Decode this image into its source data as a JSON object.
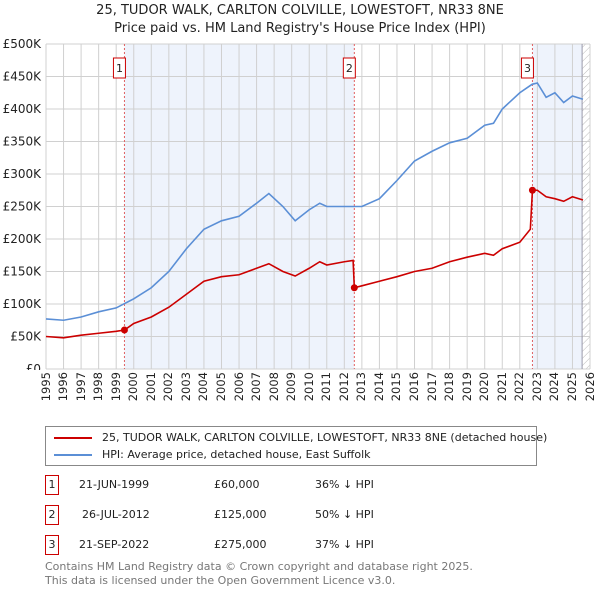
{
  "title": "25, TUDOR WALK, CARLTON COLVILLE, LOWESTOFT, NR33 8NE",
  "subtitle": "Price paid vs. HM Land Registry's House Price Index (HPI)",
  "chart_data": {
    "type": "line",
    "title": "25, TUDOR WALK, CARLTON COLVILLE, LOWESTOFT, NR33 8NE",
    "ylim": [
      0,
      500000
    ],
    "xlim": [
      1995,
      2026
    ],
    "yticks": [
      "£0",
      "£50K",
      "£100K",
      "£150K",
      "£200K",
      "£250K",
      "£300K",
      "£350K",
      "£400K",
      "£450K",
      "£500K"
    ],
    "xticks": [
      "1995",
      "1996",
      "1997",
      "1998",
      "1999",
      "2000",
      "2001",
      "2002",
      "2003",
      "2004",
      "2005",
      "2006",
      "2007",
      "2008",
      "2009",
      "2010",
      "2011",
      "2012",
      "2013",
      "2014",
      "2015",
      "2016",
      "2017",
      "2018",
      "2019",
      "2020",
      "2021",
      "2022",
      "2023",
      "2024",
      "2025",
      "2026"
    ],
    "series": [
      {
        "name": "25, TUDOR WALK, CARLTON COLVILLE, LOWESTOFT, NR33 8NE (detached house)",
        "color": "#cc0000",
        "x": [
          1995,
          1996,
          1997,
          1998,
          1999,
          1999.47,
          2000,
          2001,
          2002,
          2003,
          2004,
          2005,
          2006,
          2007,
          2007.7,
          2008.5,
          2009.2,
          2010,
          2010.6,
          2011,
          2012,
          2012.5,
          2012.57,
          2013,
          2014,
          2015,
          2016,
          2017,
          2018,
          2019,
          2020,
          2020.5,
          2021,
          2022,
          2022.6,
          2022.72,
          2023,
          2023.5,
          2024,
          2024.5,
          2025,
          2025.6
        ],
        "y": [
          50000,
          48000,
          52000,
          55000,
          58000,
          60000,
          70000,
          80000,
          95000,
          115000,
          135000,
          142000,
          145000,
          155000,
          162000,
          150000,
          143000,
          155000,
          165000,
          160000,
          165000,
          167000,
          125000,
          128000,
          135000,
          142000,
          150000,
          155000,
          165000,
          172000,
          178000,
          175000,
          185000,
          195000,
          215000,
          275000,
          275000,
          265000,
          262000,
          258000,
          265000,
          260000
        ]
      },
      {
        "name": "HPI: Average price, detached house, East Suffolk",
        "color": "#5b8fd6",
        "x": [
          1995,
          1996,
          1997,
          1998,
          1999,
          2000,
          2001,
          2002,
          2003,
          2004,
          2005,
          2006,
          2007,
          2007.7,
          2008.5,
          2009.2,
          2010,
          2010.6,
          2011,
          2012,
          2013,
          2014,
          2015,
          2016,
          2017,
          2018,
          2019,
          2020,
          2020.5,
          2021,
          2022,
          2022.7,
          2023,
          2023.5,
          2024,
          2024.5,
          2025,
          2025.6
        ],
        "y": [
          77000,
          75000,
          80000,
          88000,
          94000,
          108000,
          125000,
          150000,
          185000,
          215000,
          228000,
          235000,
          255000,
          270000,
          250000,
          228000,
          245000,
          255000,
          250000,
          250000,
          250000,
          262000,
          290000,
          320000,
          335000,
          348000,
          355000,
          375000,
          378000,
          400000,
          425000,
          438000,
          440000,
          418000,
          425000,
          410000,
          420000,
          415000
        ]
      }
    ],
    "sales": [
      {
        "label": "1",
        "x": 1999.47,
        "y": 60000
      },
      {
        "label": "2",
        "x": 2012.57,
        "y": 125000
      },
      {
        "label": "3",
        "x": 2022.72,
        "y": 275000
      }
    ]
  },
  "legend": [
    "25, TUDOR WALK, CARLTON COLVILLE, LOWESTOFT, NR33 8NE (detached house)",
    "HPI: Average price, detached house, East Suffolk"
  ],
  "table": [
    {
      "num": "1",
      "date": "21-JUN-1999",
      "price": "£60,000",
      "hpi": "36% ↓ HPI"
    },
    {
      "num": "2",
      "date": "26-JUL-2012",
      "price": "£125,000",
      "hpi": "50% ↓ HPI"
    },
    {
      "num": "3",
      "date": "21-SEP-2022",
      "price": "£275,000",
      "hpi": "37% ↓ HPI"
    }
  ],
  "footer": [
    "Contains HM Land Registry data © Crown copyright and database right 2025.",
    "This data is licensed under the Open Government Licence v3.0."
  ]
}
